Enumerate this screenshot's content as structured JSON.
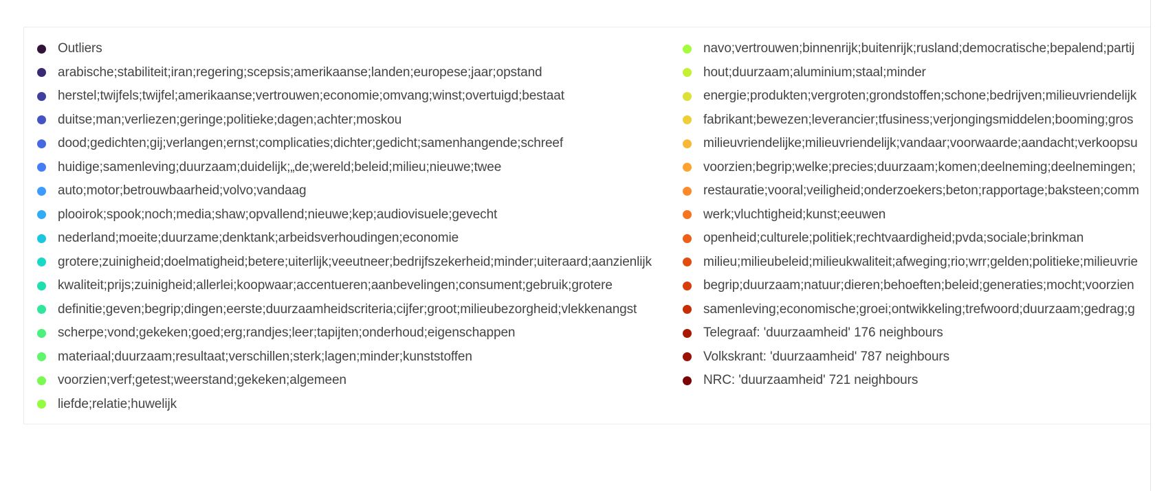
{
  "chart_data": {
    "type": "legend",
    "title": "",
    "legend_columns": [
      [
        {
          "label": "Outliers",
          "color": "#30123b"
        },
        {
          "label": "arabische;stabiliteit;iran;regering;scepsis;amerikaanse;landen;europese;jaar;opstand",
          "color": "#392a73"
        },
        {
          "label": "herstel;twijfels;twijfel;amerikaanse;vertrouwen;economie;omvang;winst;overtuigd;bestaat",
          "color": "#3e3f9e"
        },
        {
          "label": "duitse;man;verliezen;geringe;politieke;dagen;achter;moskou",
          "color": "#4454c4"
        },
        {
          "label": "dood;gedichten;gij;verlangen;ernst;complicaties;dichter;gedicht;samenhangende;schreef",
          "color": "#4668e0"
        },
        {
          "label": "huidige;samenleving;duurzaam;duidelijk;„de;wereld;beleid;milieu;nieuwe;twee",
          "color": "#467df6"
        },
        {
          "label": "auto;motor;betrouwbaarheid;volvo;vandaag",
          "color": "#3e9bfe"
        },
        {
          "label": "plooirok;spook;noch;media;shaw;opvallend;nieuwe;kep;audiovisuele;gevecht",
          "color": "#32abf7"
        },
        {
          "label": "nederland;moeite;duurzame;denktank;arbeidsverhoudingen;economie",
          "color": "#1ac7de"
        },
        {
          "label": "grotere;zuinigheid;doelmatigheid;betere;uiterlijk;veeutneer;bedrijfszekerheid;minder;uiteraard;aanzienlijk",
          "color": "#1ad8c6"
        },
        {
          "label": "kwaliteit;prijs;zuinigheid;allerlei;koopwaar;accentueren;aanbevelingen;consument;gebruik;grotere",
          "color": "#1fdeb0"
        },
        {
          "label": "definitie;geven;begrip;dingen;eerste;duurzaamheidscriteria;cijfer;groot;milieubezorgheid;vlekkenangst",
          "color": "#2ee69c"
        },
        {
          "label": "scherpe;vond;gekeken;goed;erg;randjes;leer;tapijten;onderhoud;eigenschappen",
          "color": "#4cf07f"
        },
        {
          "label": "materiaal;duurzaam;resultaat;verschillen;sterk;lagen;minder;kunststoffen",
          "color": "#61f56c"
        },
        {
          "label": "voorzien;verf;getest;weerstand;gekeken;algemeen",
          "color": "#79f951"
        },
        {
          "label": "liefde;relatie;huwelijk",
          "color": "#94fc3e"
        }
      ],
      [
        {
          "label": "navo;vertrouwen;binnenrijk;buitenrijk;rusland;democratische;bepalend;partij",
          "color": "#a4fc3c"
        },
        {
          "label": "hout;duurzaam;aluminium;staal;minder",
          "color": "#c4f134"
        },
        {
          "label": "energie;produkten;vergroten;grondstoffen;schone;bedrijven;milieuvriendelijk",
          "color": "#dde037"
        },
        {
          "label": "fabrikant;bewezen;leverancier;tfusiness;verjongingsmiddelen;booming;gros",
          "color": "#eecf3a"
        },
        {
          "label": "milieuvriendelijke;milieuvriendelijk;vandaar;voorwaarde;aandacht;verkoopsu",
          "color": "#f7b838"
        },
        {
          "label": "voorzien;begrip;welke;precies;duurzaam;komen;deelneming;deelnemingen;",
          "color": "#fca330"
        },
        {
          "label": "restauratie;vooral;veiligheid;onderzoekers;beton;rapportage;baksteen;comm",
          "color": "#fc8a2a"
        },
        {
          "label": "werk;vluchtigheid;kunst;eeuwen",
          "color": "#f6731f"
        },
        {
          "label": "openheid;culturele;politiek;rechtvaardigheid;pvda;sociale;brinkman",
          "color": "#ed5f18"
        },
        {
          "label": "milieu;milieubeleid;milieukwaliteit;afweging;rio;wrr;gelden;politieke;milieuvrie",
          "color": "#e14d10"
        },
        {
          "label": "begrip;duurzaam;natuur;dieren;behoeften;beleid;generaties;mocht;voorzien",
          "color": "#d73e0a"
        },
        {
          "label": "samenleving;economische;groei;ontwikkeling;trefwoord;duurzaam;gedrag;g",
          "color": "#c62f06"
        },
        {
          "label": "Telegraaf: 'duurzaamheid' 176 neighbours",
          "color": "#a81803"
        },
        {
          "label": "Volkskrant: 'duurzaamheid' 787 neighbours",
          "color": "#9a1204"
        },
        {
          "label": "NRC: 'duurzaamheid' 721 neighbours",
          "color": "#7a0403"
        }
      ]
    ]
  }
}
